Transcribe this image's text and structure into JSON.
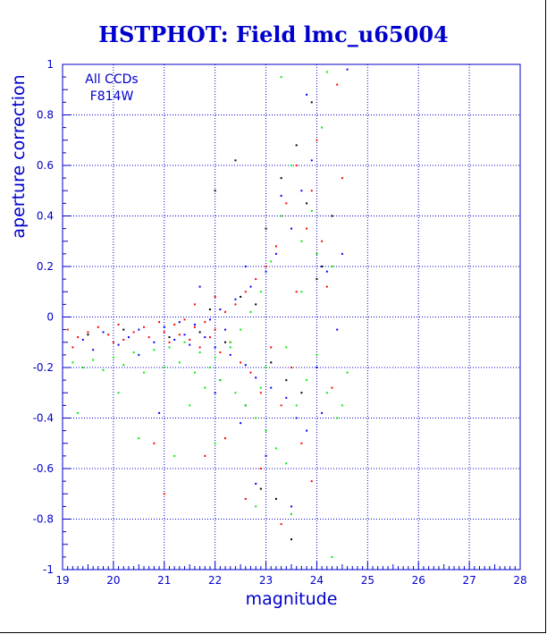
{
  "chart_data": {
    "type": "scatter",
    "title": "HSTPHOT: Field lmc_u65004",
    "xlabel": "magnitude",
    "ylabel": "aperture correction",
    "xlim": [
      19,
      28
    ],
    "ylim": [
      -1,
      1
    ],
    "x_ticks": [
      "19",
      "20",
      "21",
      "22",
      "23",
      "24",
      "25",
      "26",
      "27",
      "28"
    ],
    "y_ticks": [
      "-1",
      "-0.8",
      "-0.6",
      "-0.4",
      "-0.2",
      "0",
      "0.2",
      "0.4",
      "0.6",
      "0.8",
      "1"
    ],
    "grid": true,
    "annotations": [
      "All CCDs",
      "F814W"
    ],
    "colors": {
      "axis": "#0000cc",
      "grid": "#0000cc",
      "title": "#0000cc"
    },
    "series": [
      {
        "color": "#ff0000",
        "points": [
          [
            19.1,
            -0.05
          ],
          [
            19.3,
            -0.08
          ],
          [
            19.5,
            -0.06
          ],
          [
            19.7,
            -0.04
          ],
          [
            19.9,
            -0.07
          ],
          [
            20.1,
            -0.03
          ],
          [
            20.2,
            -0.09
          ],
          [
            20.4,
            -0.06
          ],
          [
            20.6,
            -0.04
          ],
          [
            20.7,
            -0.08
          ],
          [
            20.9,
            -0.02
          ],
          [
            21.0,
            -0.06
          ],
          [
            21.1,
            -0.1
          ],
          [
            21.2,
            -0.03
          ],
          [
            21.3,
            -0.07
          ],
          [
            21.4,
            -0.01
          ],
          [
            21.5,
            -0.09
          ],
          [
            21.6,
            -0.04
          ],
          [
            21.7,
            -0.12
          ],
          [
            21.8,
            -0.02
          ],
          [
            21.9,
            -0.08
          ],
          [
            22.0,
            -0.05
          ],
          [
            22.1,
            -0.14
          ],
          [
            22.2,
            0.02
          ],
          [
            22.3,
            -0.1
          ],
          [
            22.4,
            0.05
          ],
          [
            22.5,
            -0.18
          ],
          [
            22.6,
            0.1
          ],
          [
            22.7,
            -0.22
          ],
          [
            22.8,
            0.15
          ],
          [
            22.9,
            -0.3
          ],
          [
            23.0,
            0.2
          ],
          [
            23.1,
            -0.12
          ],
          [
            23.2,
            0.28
          ],
          [
            23.3,
            -0.35
          ],
          [
            23.4,
            0.45
          ],
          [
            23.5,
            -0.2
          ],
          [
            23.6,
            0.6
          ],
          [
            23.7,
            -0.5
          ],
          [
            23.8,
            0.35
          ],
          [
            23.9,
            -0.65
          ],
          [
            24.0,
            0.7
          ],
          [
            24.2,
            0.12
          ],
          [
            24.3,
            -0.28
          ],
          [
            24.4,
            0.92
          ],
          [
            24.5,
            0.55
          ],
          [
            22.2,
            -0.48
          ],
          [
            21.8,
            -0.55
          ],
          [
            22.9,
            -0.6
          ],
          [
            23.3,
            -0.82
          ],
          [
            20.8,
            -0.5
          ],
          [
            21.0,
            -0.7
          ],
          [
            22.6,
            -0.72
          ],
          [
            24.1,
            0.3
          ],
          [
            19.2,
            -0.12
          ],
          [
            20.0,
            -0.1
          ],
          [
            21.6,
            0.05
          ],
          [
            22.0,
            0.08
          ],
          [
            23.6,
            0.1
          ],
          [
            23.9,
            0.5
          ]
        ]
      },
      {
        "color": "#0000ff",
        "points": [
          [
            19.4,
            -0.09
          ],
          [
            19.8,
            -0.06
          ],
          [
            20.3,
            -0.08
          ],
          [
            20.5,
            -0.05
          ],
          [
            20.8,
            -0.1
          ],
          [
            21.0,
            -0.04
          ],
          [
            21.2,
            -0.09
          ],
          [
            21.3,
            -0.02
          ],
          [
            21.5,
            -0.11
          ],
          [
            21.6,
            -0.03
          ],
          [
            21.8,
            -0.08
          ],
          [
            21.9,
            -0.01
          ],
          [
            22.0,
            -0.12
          ],
          [
            22.1,
            0.03
          ],
          [
            22.3,
            -0.15
          ],
          [
            22.4,
            0.07
          ],
          [
            22.6,
            -0.19
          ],
          [
            22.7,
            0.12
          ],
          [
            22.8,
            -0.24
          ],
          [
            23.0,
            0.18
          ],
          [
            23.1,
            -0.28
          ],
          [
            23.2,
            0.25
          ],
          [
            23.4,
            -0.32
          ],
          [
            23.5,
            0.35
          ],
          [
            23.6,
            -0.4
          ],
          [
            23.7,
            0.5
          ],
          [
            23.8,
            -0.45
          ],
          [
            23.9,
            0.62
          ],
          [
            24.0,
            -0.2
          ],
          [
            24.2,
            0.18
          ],
          [
            24.4,
            -0.05
          ],
          [
            24.6,
            0.98
          ],
          [
            24.5,
            0.25
          ],
          [
            22.5,
            -0.42
          ],
          [
            23.0,
            -0.55
          ],
          [
            22.0,
            -0.3
          ],
          [
            21.0,
            -0.2
          ],
          [
            20.9,
            -0.38
          ],
          [
            22.8,
            -0.66
          ],
          [
            23.5,
            -0.75
          ],
          [
            21.7,
            0.12
          ],
          [
            22.6,
            0.2
          ],
          [
            23.3,
            0.48
          ],
          [
            23.8,
            0.88
          ],
          [
            20.5,
            -0.15
          ],
          [
            21.4,
            -0.07
          ],
          [
            22.2,
            -0.05
          ],
          [
            24.1,
            -0.38
          ],
          [
            19.6,
            -0.13
          ],
          [
            20.1,
            -0.11
          ]
        ]
      },
      {
        "color": "#000000",
        "points": [
          [
            19.5,
            -0.07
          ],
          [
            20.2,
            -0.05
          ],
          [
            21.1,
            -0.08
          ],
          [
            21.7,
            -0.06
          ],
          [
            22.2,
            -0.1
          ],
          [
            22.5,
            0.08
          ],
          [
            22.8,
            0.05
          ],
          [
            23.0,
            0.35
          ],
          [
            23.1,
            -0.18
          ],
          [
            23.3,
            0.55
          ],
          [
            23.4,
            -0.25
          ],
          [
            23.6,
            0.68
          ],
          [
            23.7,
            -0.3
          ],
          [
            23.9,
            0.85
          ],
          [
            24.1,
            0.2
          ],
          [
            24.3,
            0.4
          ],
          [
            22.0,
            0.5
          ],
          [
            22.4,
            0.62
          ],
          [
            22.9,
            -0.68
          ],
          [
            23.2,
            -0.72
          ],
          [
            23.5,
            -0.88
          ],
          [
            22.1,
            -0.25
          ],
          [
            21.9,
            0.03
          ],
          [
            22.6,
            -0.35
          ],
          [
            23.8,
            0.45
          ],
          [
            24.0,
            0.15
          ]
        ]
      },
      {
        "color": "#00ee00",
        "points": [
          [
            19.2,
            -0.18
          ],
          [
            19.4,
            -0.2
          ],
          [
            19.6,
            -0.17
          ],
          [
            19.8,
            -0.21
          ],
          [
            20.0,
            -0.16
          ],
          [
            20.2,
            -0.19
          ],
          [
            20.4,
            -0.14
          ],
          [
            20.6,
            -0.22
          ],
          [
            20.8,
            -0.13
          ],
          [
            21.0,
            -0.2
          ],
          [
            21.1,
            -0.12
          ],
          [
            21.3,
            -0.18
          ],
          [
            21.4,
            -0.1
          ],
          [
            21.6,
            -0.22
          ],
          [
            21.7,
            -0.14
          ],
          [
            21.9,
            -0.2
          ],
          [
            22.0,
            -0.16
          ],
          [
            22.1,
            -0.25
          ],
          [
            22.3,
            -0.12
          ],
          [
            22.4,
            -0.3
          ],
          [
            22.5,
            -0.05
          ],
          [
            22.6,
            -0.35
          ],
          [
            22.7,
            0.02
          ],
          [
            22.8,
            -0.4
          ],
          [
            22.9,
            0.1
          ],
          [
            23.0,
            -0.45
          ],
          [
            23.1,
            0.22
          ],
          [
            23.2,
            -0.52
          ],
          [
            23.3,
            0.4
          ],
          [
            23.4,
            -0.58
          ],
          [
            23.5,
            0.6
          ],
          [
            23.6,
            -0.35
          ],
          [
            23.7,
            0.3
          ],
          [
            23.8,
            -0.25
          ],
          [
            23.9,
            0.42
          ],
          [
            24.0,
            -0.15
          ],
          [
            24.1,
            0.75
          ],
          [
            24.2,
            -0.3
          ],
          [
            24.3,
            0.2
          ],
          [
            24.4,
            -0.4
          ],
          [
            24.5,
            -0.35
          ],
          [
            24.2,
            0.97
          ],
          [
            23.3,
            0.95
          ],
          [
            20.5,
            -0.48
          ],
          [
            21.5,
            -0.35
          ],
          [
            21.2,
            -0.55
          ],
          [
            22.0,
            -0.5
          ],
          [
            22.8,
            -0.75
          ],
          [
            23.5,
            -0.78
          ],
          [
            24.3,
            -0.95
          ],
          [
            19.3,
            -0.38
          ],
          [
            20.1,
            -0.3
          ],
          [
            22.3,
            -0.1
          ],
          [
            23.0,
            -0.2
          ],
          [
            23.7,
            0.1
          ],
          [
            24.6,
            -0.22
          ],
          [
            21.8,
            -0.28
          ],
          [
            22.9,
            -0.28
          ],
          [
            23.4,
            -0.12
          ],
          [
            24.0,
            0.25
          ]
        ]
      }
    ]
  }
}
